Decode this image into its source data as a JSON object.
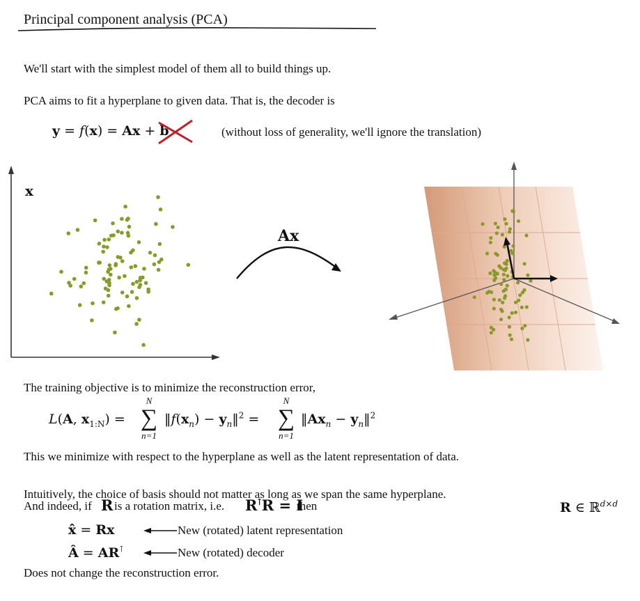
{
  "title": "Principal component analysis (PCA)",
  "intro": "We'll start with the simplest model of them all to build things up.",
  "decoder_sentence": "PCA aims to fit a hyperplane to given data.  That is, the decoder is",
  "decoder_eq": {
    "lhs": "y = f(x) = Ax + b",
    "note": "(without loss of generality, we'll ignore the translation)"
  },
  "diagram": {
    "data_label": "x",
    "map_label": "Ax"
  },
  "objective_intro": "The training objective is to minimize the reconstruction error,",
  "loss_eq": {
    "lhs": "L(A, x",
    "lhs_sub": "1:N",
    "sum_upper": "N",
    "sum_lower": "n=1",
    "term1": "‖f(x",
    "term1_sub": "n",
    "term1_rest": ") − y",
    "term1_sub2": "n",
    "term2": "‖Ax",
    "term2_sub": "n",
    "term2_rest": " − y",
    "term2_sub2": "n",
    "sq": "2"
  },
  "minimize_sentence": "This we minimize with respect to the hyperplane as well as the latent representation of data.",
  "intuition_line1": "Intuitively, the choice of basis should not matter as long as we span the same hyperplane.",
  "intuition_line2_a": "And indeed, if",
  "intuition_line2_b": "is a rotation matrix, i.e.",
  "intuition_line2_c": "then",
  "rotation": {
    "R": "R",
    "RtR": "R",
    "RtR_rest": "R = I",
    "domain": "R ∈ ℝ",
    "domain_sup": "d×d"
  },
  "new_latent": {
    "eq": "x̂ = Rx",
    "label": "New (rotated) latent representation"
  },
  "new_decoder": {
    "eq": "Â = AR",
    "label": "New (rotated) decoder"
  },
  "conclusion": "Does not change the reconstruction error.",
  "colors": {
    "point": "#8a9a2a",
    "plane_dark": "#d49a78",
    "plane_light": "#fbeee6",
    "cross": "#c0202a"
  }
}
